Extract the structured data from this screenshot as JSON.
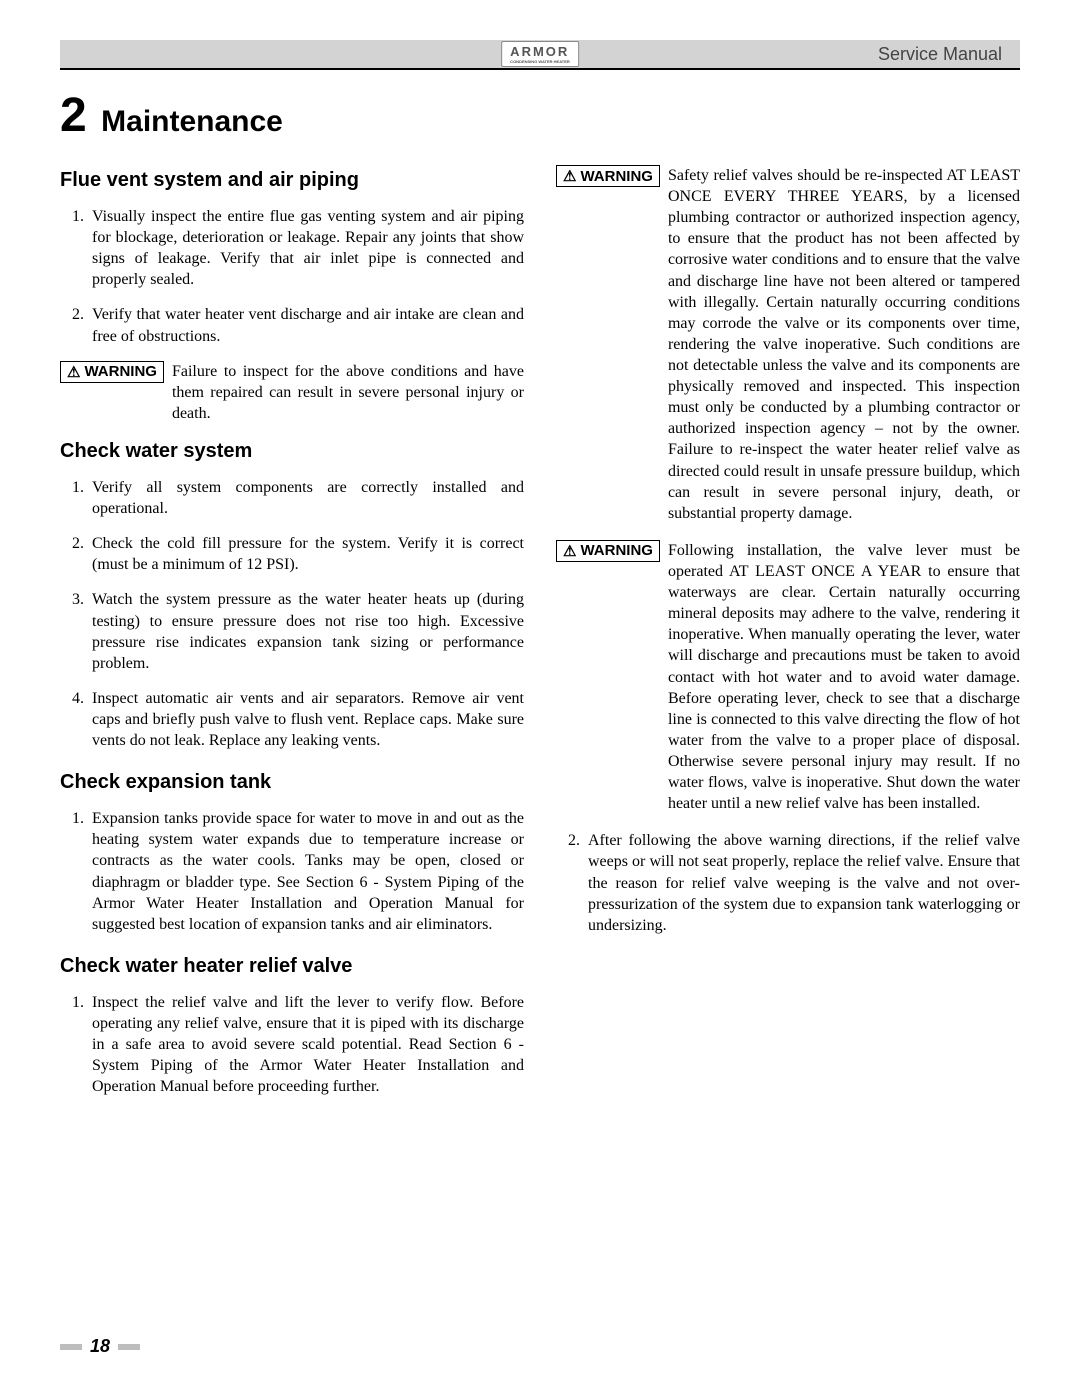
{
  "header": {
    "brand": "ARMOR",
    "brand_sub": "CONDENSING WATER HEATER",
    "doc_type": "Service Manual"
  },
  "chapter": {
    "number": "2",
    "title": "Maintenance"
  },
  "left": {
    "s1": {
      "heading": "Flue vent system and air piping",
      "items": [
        "Visually inspect the entire flue gas venting system and air piping for blockage, deterioration or leakage.  Repair any joints that show signs of leakage. Verify that air inlet pipe is connected and properly sealed.",
        "Verify that water heater vent discharge and air intake are clean and free of obstructions."
      ],
      "warning": "Failure to inspect for the above conditions and have them repaired can result in severe personal injury or death."
    },
    "s2": {
      "heading": "Check water system",
      "items": [
        "Verify all system components are correctly installed and operational.",
        "Check the cold fill pressure for the system.  Verify it is correct (must be a minimum of 12 PSI).",
        "Watch the system pressure as the water heater heats up (during testing) to ensure pressure does not rise too high. Excessive pressure rise indicates expansion tank sizing or performance problem.",
        "Inspect automatic air vents and air separators.  Remove air vent caps and briefly push valve to flush vent.  Replace caps. Make sure vents do not leak.  Replace any leaking vents."
      ]
    },
    "s3": {
      "heading": "Check expansion tank",
      "items": [
        "Expansion tanks provide space for water to move in and out as the heating system water expands due to temperature increase or contracts as the water cools.  Tanks may be open, closed or diaphragm or bladder type.  See Section 6 - System Piping of the Armor Water Heater Installation and Operation Manual for suggested best location of expansion tanks and air eliminators."
      ]
    },
    "s4": {
      "heading": "Check water heater relief valve",
      "items": [
        "Inspect the relief valve and lift the lever to verify flow. Before operating any relief valve, ensure that it is piped with its discharge in a safe area to avoid severe scald potential. Read Section 6 - System Piping of the Armor Water Heater Installation and Operation Manual before proceeding further."
      ]
    }
  },
  "right": {
    "warning1": "Safety relief valves should be re-inspected AT LEAST ONCE EVERY THREE YEARS, by a licensed plumbing contractor or authorized inspection agency, to ensure that the product has not been affected by corrosive water conditions and to ensure that the valve and discharge line have not been altered or tampered with illegally.  Certain naturally occurring conditions may corrode the valve or its components over time, rendering the valve inoperative.  Such conditions are not detectable unless the valve and its components are physically removed and inspected.  This inspection must only be conducted by a plumbing contractor or authorized inspection agency – not by the owner.  Failure to re-inspect the water heater relief valve as directed could result in unsafe pressure buildup, which can result in severe personal injury, death, or substantial property damage.",
    "warning2": "Following installation, the valve lever must be operated AT LEAST ONCE A YEAR to ensure that waterways are clear.  Certain naturally occurring mineral deposits may adhere to the valve, rendering it inoperative. When manually operating the lever, water will discharge and precautions must be taken to avoid contact with hot water and to avoid water damage.  Before operating lever, check to see that a discharge line is connected to this valve directing the flow of hot water from the valve to a proper place of disposal. Otherwise severe personal injury may result. If no water flows, valve is inoperative.  Shut down the water heater until a new relief valve has been installed.",
    "item2": "After following the above warning directions, if the relief valve weeps or will not seat properly, replace the relief valve. Ensure that the reason for relief valve weeping is the valve and not over-pressurization of the system due to expansion tank waterlogging or undersizing."
  },
  "warning_label": "WARNING",
  "footer": {
    "page": "18"
  },
  "colors": {
    "header_bg": "#d3d3d3",
    "text": "#000000",
    "footer_dash": "#bdbdbd"
  }
}
